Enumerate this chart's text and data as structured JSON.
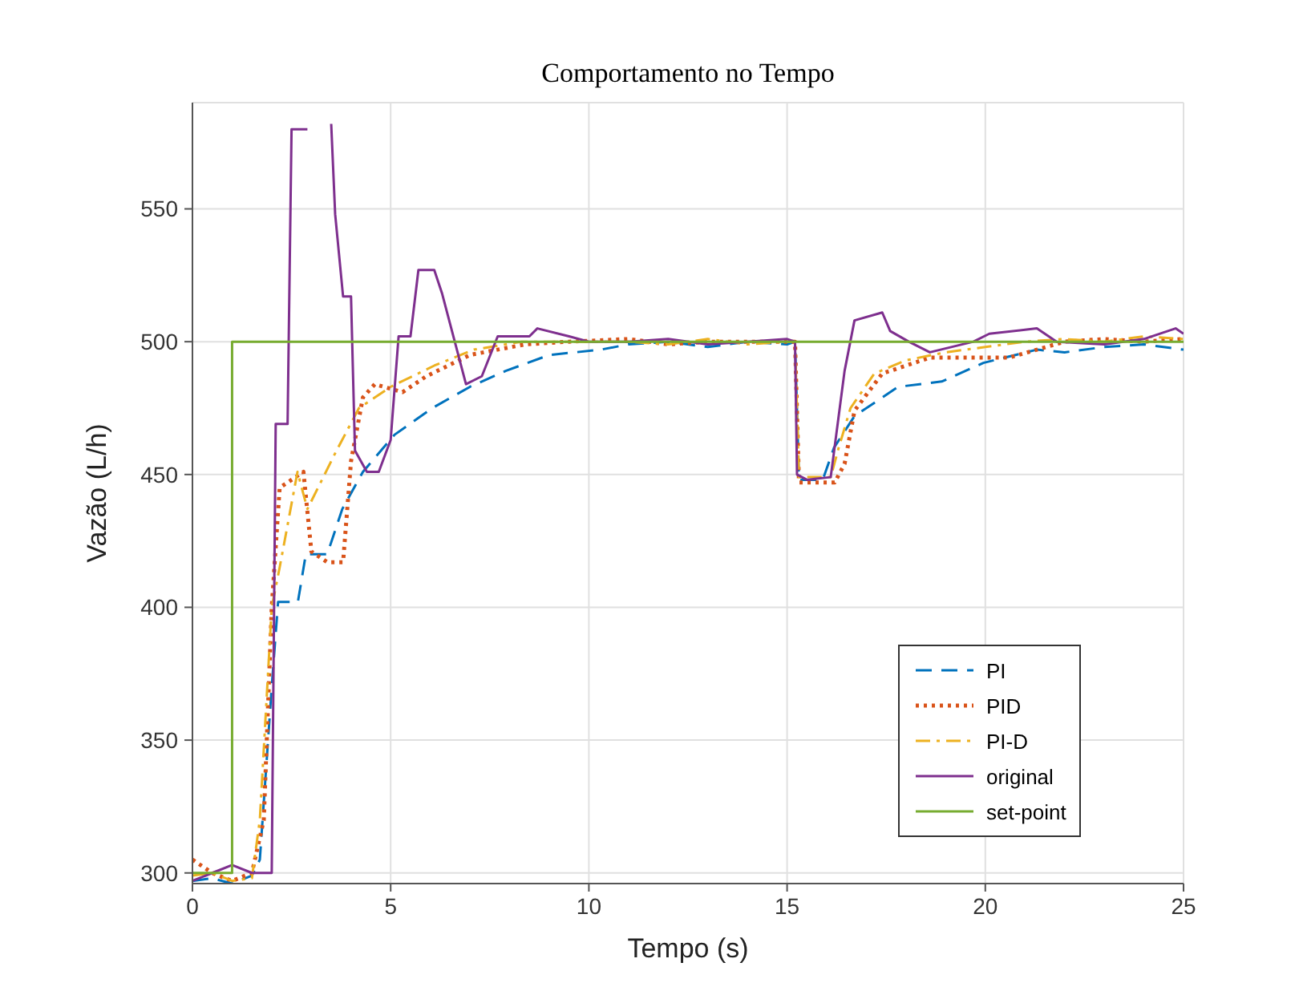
{
  "chart_data": {
    "type": "line",
    "title": "Comportamento no Tempo",
    "xlabel": "Tempo (s)",
    "ylabel": "Vazão (L/h)",
    "xlim": [
      0,
      25
    ],
    "xticks": [
      0,
      5,
      10,
      15,
      20,
      25
    ],
    "ylim": [
      296,
      590
    ],
    "yticks": [
      300,
      350,
      400,
      450,
      500,
      550
    ],
    "grid": true,
    "legend": "bottom right",
    "marker": "none",
    "series": [
      {
        "name": "PI",
        "color": "#0072bd",
        "line_style": "dashed",
        "x": [
          0,
          0.5,
          1.0,
          1.5,
          1.7,
          2.0,
          2.16,
          2.66,
          2.86,
          3.4,
          3.78,
          4.3,
          5.1,
          6.05,
          7.0,
          7.9,
          9.0,
          10.3,
          11,
          12,
          13,
          14,
          15,
          15.2,
          15.3,
          15.9,
          16.18,
          16.7,
          17.8,
          18.9,
          19.95,
          21.3,
          22,
          23,
          24,
          25
        ],
        "values": [
          297,
          298,
          296,
          299,
          305,
          370,
          402,
          402,
          420,
          420,
          437,
          451,
          465,
          475,
          483,
          489,
          495,
          497,
          499,
          500,
          498,
          500,
          499,
          500,
          448,
          448,
          460,
          472,
          483,
          485,
          492,
          497,
          496,
          498,
          499,
          497
        ]
      },
      {
        "name": "PID",
        "color": "#d95319",
        "line_style": "dotted",
        "x": [
          0,
          0.5,
          1.0,
          1.5,
          1.8,
          2.0,
          2.2,
          2.8,
          3.0,
          3.4,
          3.8,
          4.0,
          4.3,
          4.6,
          5.3,
          5.9,
          7.0,
          8.4,
          9.5,
          11,
          12,
          13,
          14,
          15,
          15.2,
          15.3,
          16.2,
          16.45,
          16.7,
          17.4,
          18.6,
          20.6,
          22,
          23,
          24,
          25
        ],
        "values": [
          305,
          300,
          297,
          300,
          320,
          400,
          445,
          451,
          421,
          417,
          417,
          455,
          479,
          484,
          481,
          487,
          495,
          499,
          500,
          501,
          499,
          500,
          500,
          500,
          500,
          447,
          447,
          454,
          474,
          488,
          494,
          494,
          500,
          501,
          500,
          501
        ]
      },
      {
        "name": "PI-D",
        "color": "#edb120",
        "line_style": "dashdot",
        "x": [
          0,
          0.5,
          1.0,
          1.5,
          1.7,
          2.0,
          2.2,
          2.65,
          2.9,
          3.6,
          4.2,
          5.0,
          6.1,
          7.1,
          8.3,
          10,
          11,
          12,
          13,
          14,
          15,
          15.2,
          15.3,
          16.1,
          16.3,
          16.6,
          17.2,
          18,
          19,
          20,
          21,
          22,
          23,
          24,
          25
        ],
        "values": [
          299,
          300,
          297,
          298,
          320,
          400,
          415,
          451,
          437,
          458,
          475,
          483,
          491,
          497,
          500,
          500,
          500,
          499,
          501,
          499,
          500,
          500,
          449,
          449,
          460,
          475,
          488,
          493,
          496,
          498,
          500,
          501,
          500,
          502,
          501
        ]
      },
      {
        "name": "original",
        "color": "#7e2f8e",
        "line_style": "solid",
        "x": [
          0,
          0.5,
          1.0,
          1.5,
          2.0,
          2.1,
          2.4,
          2.5,
          2.9,
          3.0,
          3.3,
          3.5,
          3.6,
          3.8,
          4.0,
          4.1,
          4.4,
          4.7,
          5.0,
          5.2,
          5.5,
          5.7,
          6.1,
          6.3,
          6.6,
          6.9,
          7.3,
          7.7,
          8.5,
          8.7,
          9.5,
          10,
          11,
          12,
          13,
          14,
          15,
          15.2,
          15.25,
          15.5,
          16.1,
          16.45,
          16.7,
          17.4,
          17.6,
          18.07,
          18.6,
          19.7,
          20.1,
          21.3,
          21.8,
          23,
          24,
          24.8,
          25
        ],
        "values": [
          297,
          300,
          303,
          300,
          300,
          469,
          469,
          580,
          580,
          null,
          null,
          582,
          548,
          517,
          517,
          459,
          451,
          451,
          463,
          502,
          502,
          527,
          527,
          518,
          501,
          484,
          487,
          502,
          502,
          505,
          502,
          500,
          500,
          501,
          499,
          500,
          501,
          500,
          450,
          448,
          449,
          489,
          508,
          511,
          504,
          500,
          496,
          500,
          503,
          505,
          500,
          499,
          501,
          505,
          503
        ]
      },
      {
        "name": "set-point",
        "color": "#77ac30",
        "line_style": "solid",
        "x": [
          0,
          1.0,
          1.0,
          25
        ],
        "values": [
          300,
          300,
          500,
          500
        ]
      }
    ]
  }
}
